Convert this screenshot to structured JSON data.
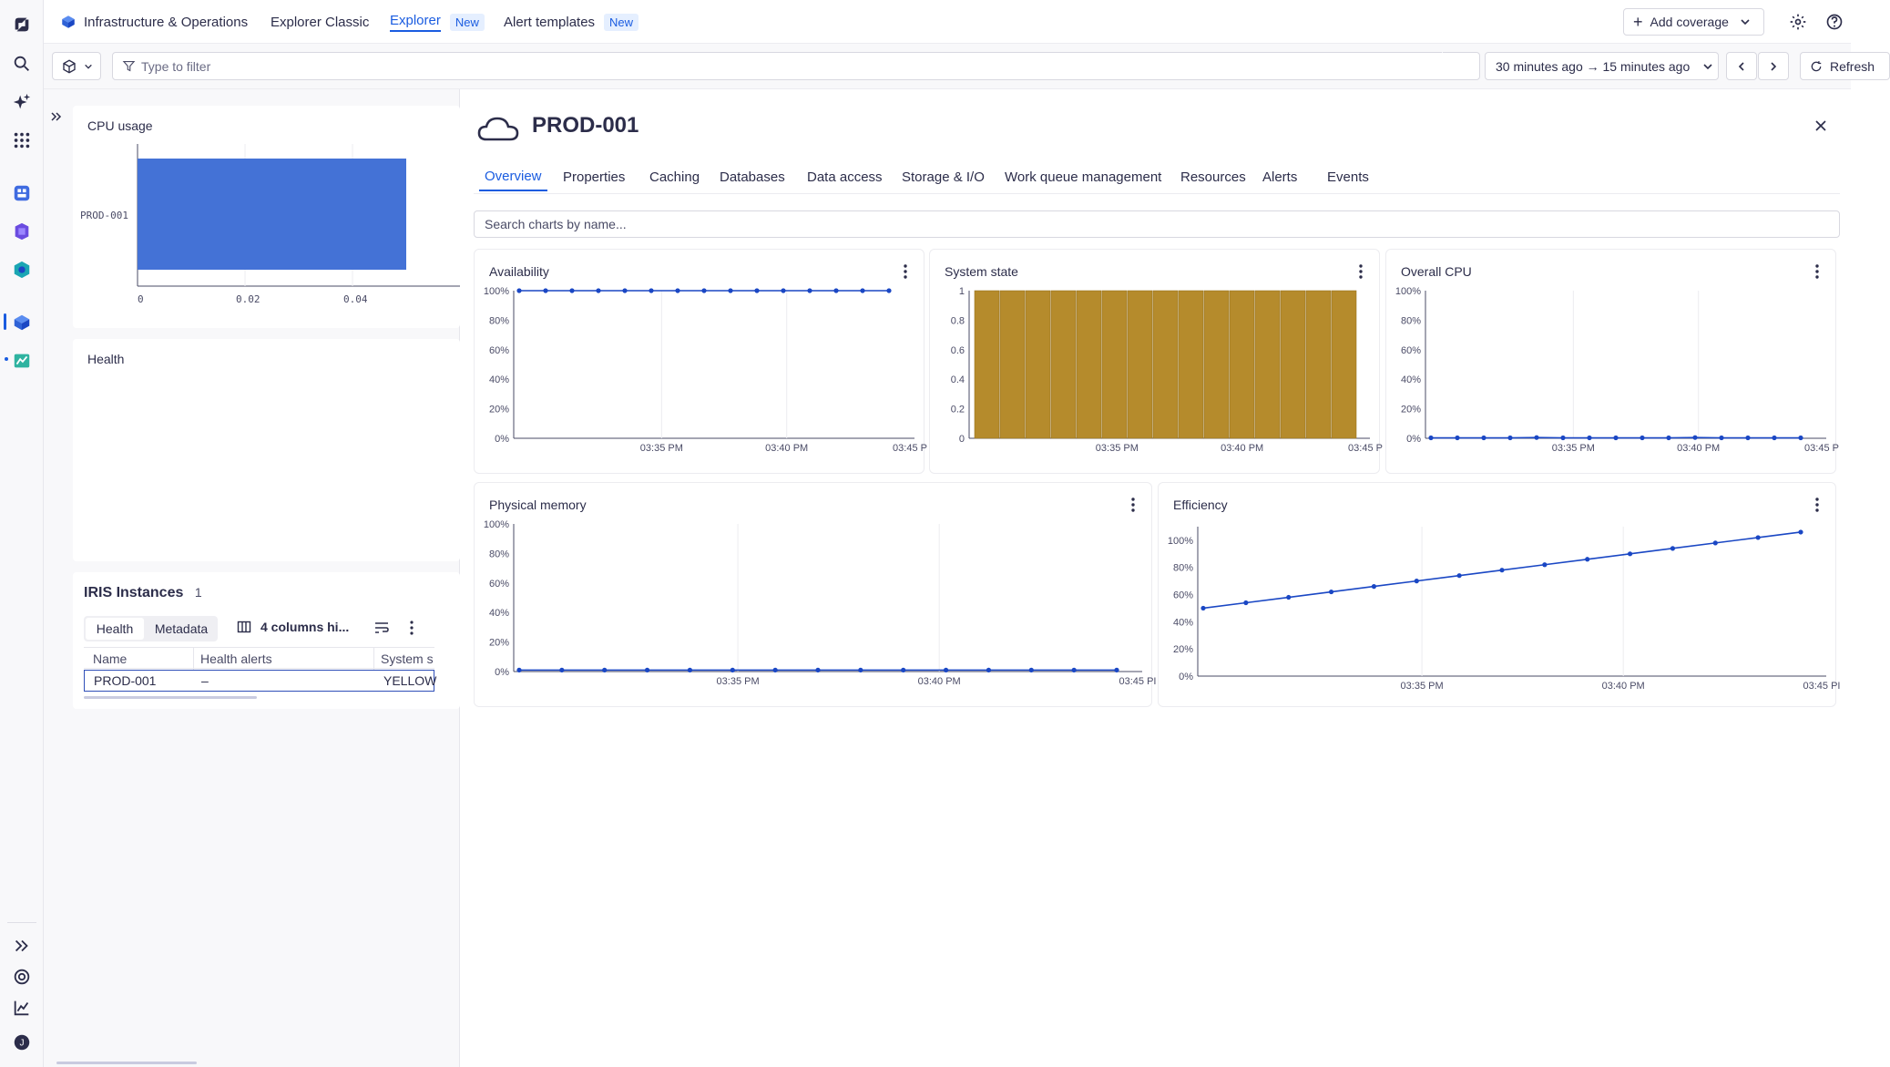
{
  "nav": {
    "app_title": "Infrastructure & Operations",
    "tabs": [
      {
        "label": "Explorer Classic",
        "badge": ""
      },
      {
        "label": "Explorer",
        "badge": "New"
      },
      {
        "label": "Alert templates",
        "badge": "New"
      }
    ],
    "add_coverage": "Add coverage"
  },
  "filter": {
    "placeholder": "Type to filter",
    "timeframe": "30 minutes ago → 15 minutes ago",
    "refresh": "Refresh"
  },
  "left": {
    "cpu_card": {
      "title": "CPU usage",
      "chart_data": {
        "type": "bar",
        "orientation": "horizontal",
        "categories": [
          "PROD-001"
        ],
        "values": [
          0.05
        ],
        "xticks": [
          "0",
          "0.02",
          "0.04"
        ],
        "color": "#4472d6"
      }
    },
    "health_card": {
      "title": "Health"
    },
    "instances": {
      "title": "IRIS Instances",
      "count": "1",
      "tabs": [
        "Health",
        "Metadata"
      ],
      "columns_hidden": "4 columns hi...",
      "headers": [
        "Name",
        "Health alerts",
        "System s"
      ],
      "rows": [
        [
          "PROD-001",
          "–",
          "YELLOW"
        ]
      ]
    }
  },
  "detail": {
    "title": "PROD-001",
    "tabs": [
      "Overview",
      "Properties",
      "Caching",
      "Databases",
      "Data access",
      "Storage & I/O",
      "Work queue management",
      "Resources",
      "Alerts",
      "Events"
    ],
    "search_placeholder": "Search charts by name...",
    "colors": {
      "line": "#1a47c4",
      "bar": "#b58b2c",
      "accent": "#1a5ce0"
    }
  },
  "chart_data": [
    {
      "title": "Availability",
      "type": "line",
      "yticks": [
        "100%",
        "80%",
        "60%",
        "40%",
        "20%",
        "0%"
      ],
      "xticks": [
        "03:35 PM",
        "03:40 PM",
        "03:45 P"
      ],
      "ylim": [
        0,
        100
      ],
      "values": [
        100,
        100,
        100,
        100,
        100,
        100,
        100,
        100,
        100,
        100,
        100,
        100,
        100,
        100,
        100
      ]
    },
    {
      "title": "System state",
      "type": "bar",
      "yticks": [
        "1",
        "0.8",
        "0.6",
        "0.4",
        "0.2",
        "0"
      ],
      "xticks": [
        "03:35 PM",
        "03:40 PM",
        "03:45 P"
      ],
      "ylim": [
        0,
        1
      ],
      "values": [
        1,
        1,
        1,
        1,
        1,
        1,
        1,
        1,
        1,
        1,
        1,
        1,
        1,
        1,
        1
      ]
    },
    {
      "title": "Overall CPU",
      "type": "line",
      "yticks": [
        "100%",
        "80%",
        "60%",
        "40%",
        "20%",
        "0%"
      ],
      "xticks": [
        "03:35 PM",
        "03:40 PM",
        "03:45 P"
      ],
      "ylim": [
        0,
        100
      ],
      "values": [
        0.3,
        0.3,
        0.3,
        0.3,
        0.5,
        0.3,
        0.3,
        0.3,
        0.3,
        0.3,
        0.5,
        0.3,
        0.3,
        0.3,
        0.3
      ]
    },
    {
      "title": "Physical memory",
      "type": "line",
      "yticks": [
        "100%",
        "80%",
        "60%",
        "40%",
        "20%",
        "0%"
      ],
      "xticks": [
        "03:35 PM",
        "03:40 PM",
        "03:45 PI"
      ],
      "ylim": [
        0,
        100
      ],
      "values": [
        1,
        1,
        1,
        1,
        1,
        1,
        1,
        1,
        1,
        1,
        1,
        1,
        1,
        1,
        1
      ]
    },
    {
      "title": "Efficiency",
      "type": "line",
      "yticks": [
        "100%",
        "80%",
        "60%",
        "40%",
        "20%",
        "0%"
      ],
      "xticks": [
        "03:35 PM",
        "03:40 PM",
        "03:45 PI"
      ],
      "ylim": [
        0,
        110
      ],
      "values": [
        50,
        54,
        58,
        62,
        66,
        70,
        74,
        78,
        82,
        86,
        90,
        94,
        98,
        102,
        106
      ]
    }
  ]
}
